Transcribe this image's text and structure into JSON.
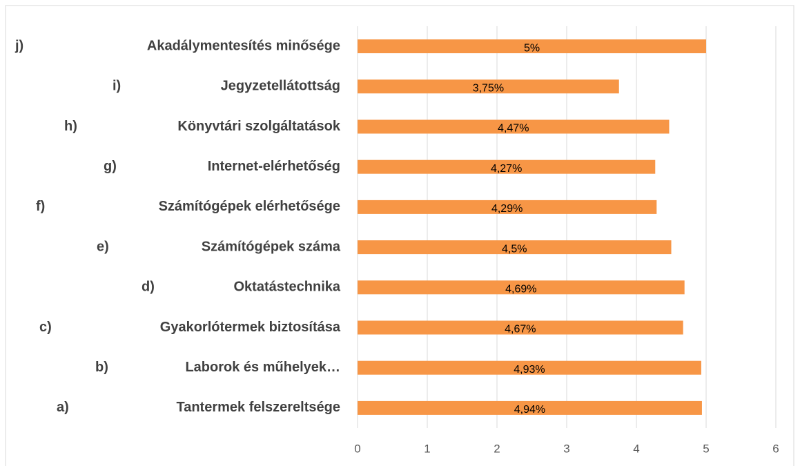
{
  "chart_data": {
    "type": "barh",
    "letters": [
      "a)",
      "b)",
      "c)",
      "d)",
      "e)",
      "f)",
      "g)",
      "h)",
      "i)",
      "j)"
    ],
    "categories": [
      "Tantermek felszereltsége",
      "Laborok és műhelyek…",
      "Gyakorlótermek biztosítása",
      "Oktatástechnika",
      "Számítógépek száma",
      "Számítógépek elérhetősége",
      "Internet-elérhetőség",
      "Könyvtári szolgáltatások",
      "Jegyzetellátottság",
      "Akadálymentesítés minősége"
    ],
    "values": [
      4.94,
      4.93,
      4.67,
      4.69,
      4.5,
      4.29,
      4.27,
      4.47,
      3.75,
      5
    ],
    "value_labels": [
      "4,94%",
      "4,93%",
      "4,67%",
      "4,69%",
      "4,5%",
      "4,29%",
      "4,27%",
      "4,47%",
      "3,75%",
      "5%"
    ],
    "color": "#f79646",
    "xlim": [
      0,
      6
    ],
    "xticks": [
      0,
      1,
      2,
      3,
      4,
      5,
      6
    ],
    "grid": true
  }
}
